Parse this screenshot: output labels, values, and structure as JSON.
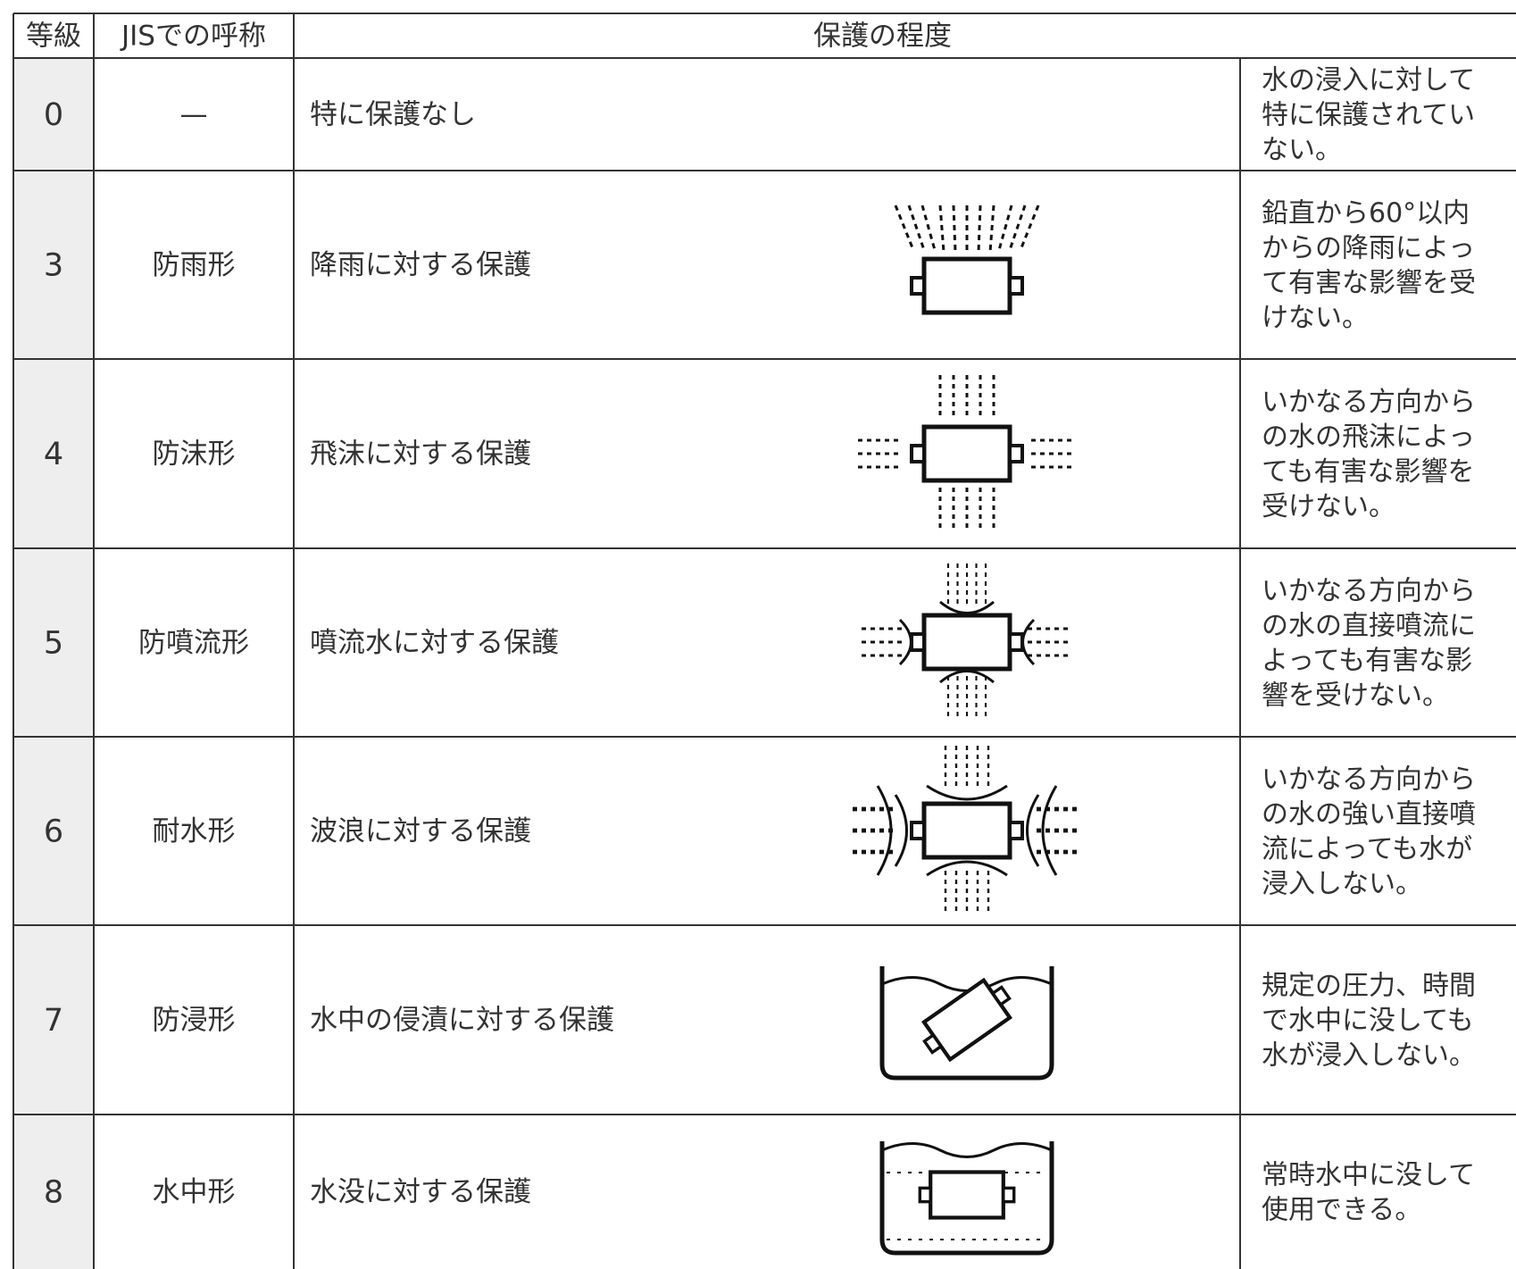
{
  "table": {
    "header": [
      "等級",
      "JISでの呼称",
      "保護の程度"
    ],
    "rows": [
      {
        "grade": "0",
        "name": "—",
        "protection": "特に保護なし",
        "note": [
          "水の浸入に対して",
          "特に保護されてい",
          "ない。"
        ]
      },
      {
        "grade": "3",
        "name": "防雨形",
        "protection": "降雨に対する保護",
        "note": [
          "鉛直から60°以内",
          "からの降雨によっ",
          "て有害な影響を受",
          "けない。"
        ]
      },
      {
        "grade": "4",
        "name": "防沫形",
        "protection": "飛沫に対する保護",
        "note": [
          "いかなる方向から",
          "の水の飛沫によっ",
          "ても有害な影響を",
          "受けない。"
        ]
      },
      {
        "grade": "5",
        "name": "防噴流形",
        "protection": "噴流水に対する保護",
        "note": [
          "いかなる方向から",
          "の水の直接噴流に",
          "よっても有害な影",
          "響を受けない。"
        ]
      },
      {
        "grade": "6",
        "name": "耐水形",
        "protection": "波浪に対する保護",
        "note": [
          "いかなる方向から",
          "の水の強い直接噴",
          "流によっても水が",
          "浸入しない。"
        ]
      },
      {
        "grade": "7",
        "name": "防浸形",
        "protection": "水中の侵漬に対する保護",
        "note": [
          "規定の圧力、時間",
          "で水中に没しても",
          "水が浸入しない。"
        ]
      },
      {
        "grade": "8",
        "name": "水中形",
        "protection": "水没に対する保護",
        "note": [
          "常時水中に没して",
          "使用できる。"
        ]
      }
    ]
  }
}
